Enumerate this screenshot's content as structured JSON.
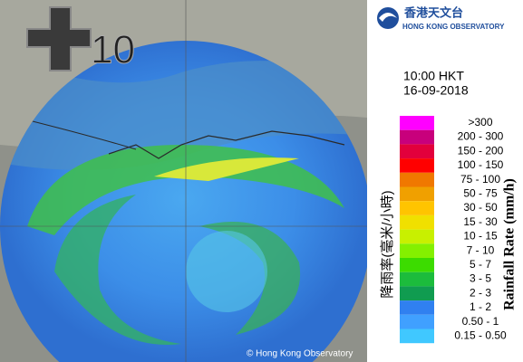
{
  "header": {
    "org_zh": "香港天文台",
    "org_en": "HONG KONG OBSERVATORY"
  },
  "overlay": {
    "offset": "10"
  },
  "time": "10:00 HKT",
  "date": "16-09-2018",
  "legend": {
    "title_zh": "降雨率(毫米/小時)",
    "title_en": "Rainfall Rate (mm/h)",
    "items": [
      {
        "label": ">300",
        "color": "#ff00ff"
      },
      {
        "label": "200 - 300",
        "color": "#c8007c"
      },
      {
        "label": "150 - 200",
        "color": "#e2003c"
      },
      {
        "label": "100 - 150",
        "color": "#ff0000"
      },
      {
        "label": "75 - 100",
        "color": "#f07800"
      },
      {
        "label": "50 - 75",
        "color": "#f0a000"
      },
      {
        "label": "30 - 50",
        "color": "#ffc400"
      },
      {
        "label": "15 - 30",
        "color": "#f0e000"
      },
      {
        "label": "10 - 15",
        "color": "#c8f000"
      },
      {
        "label": "7 - 10",
        "color": "#84f000"
      },
      {
        "label": "5 - 7",
        "color": "#3cdc00"
      },
      {
        "label": "3 - 5",
        "color": "#1cbc3c"
      },
      {
        "label": "2 - 3",
        "color": "#109c50"
      },
      {
        "label": "1 - 2",
        "color": "#3080f0"
      },
      {
        "label": "0.50 - 1",
        "color": "#40a0ff"
      },
      {
        "label": "0.15 - 0.50",
        "color": "#40c8ff"
      }
    ]
  },
  "copyright": "© Hong Kong Observatory"
}
